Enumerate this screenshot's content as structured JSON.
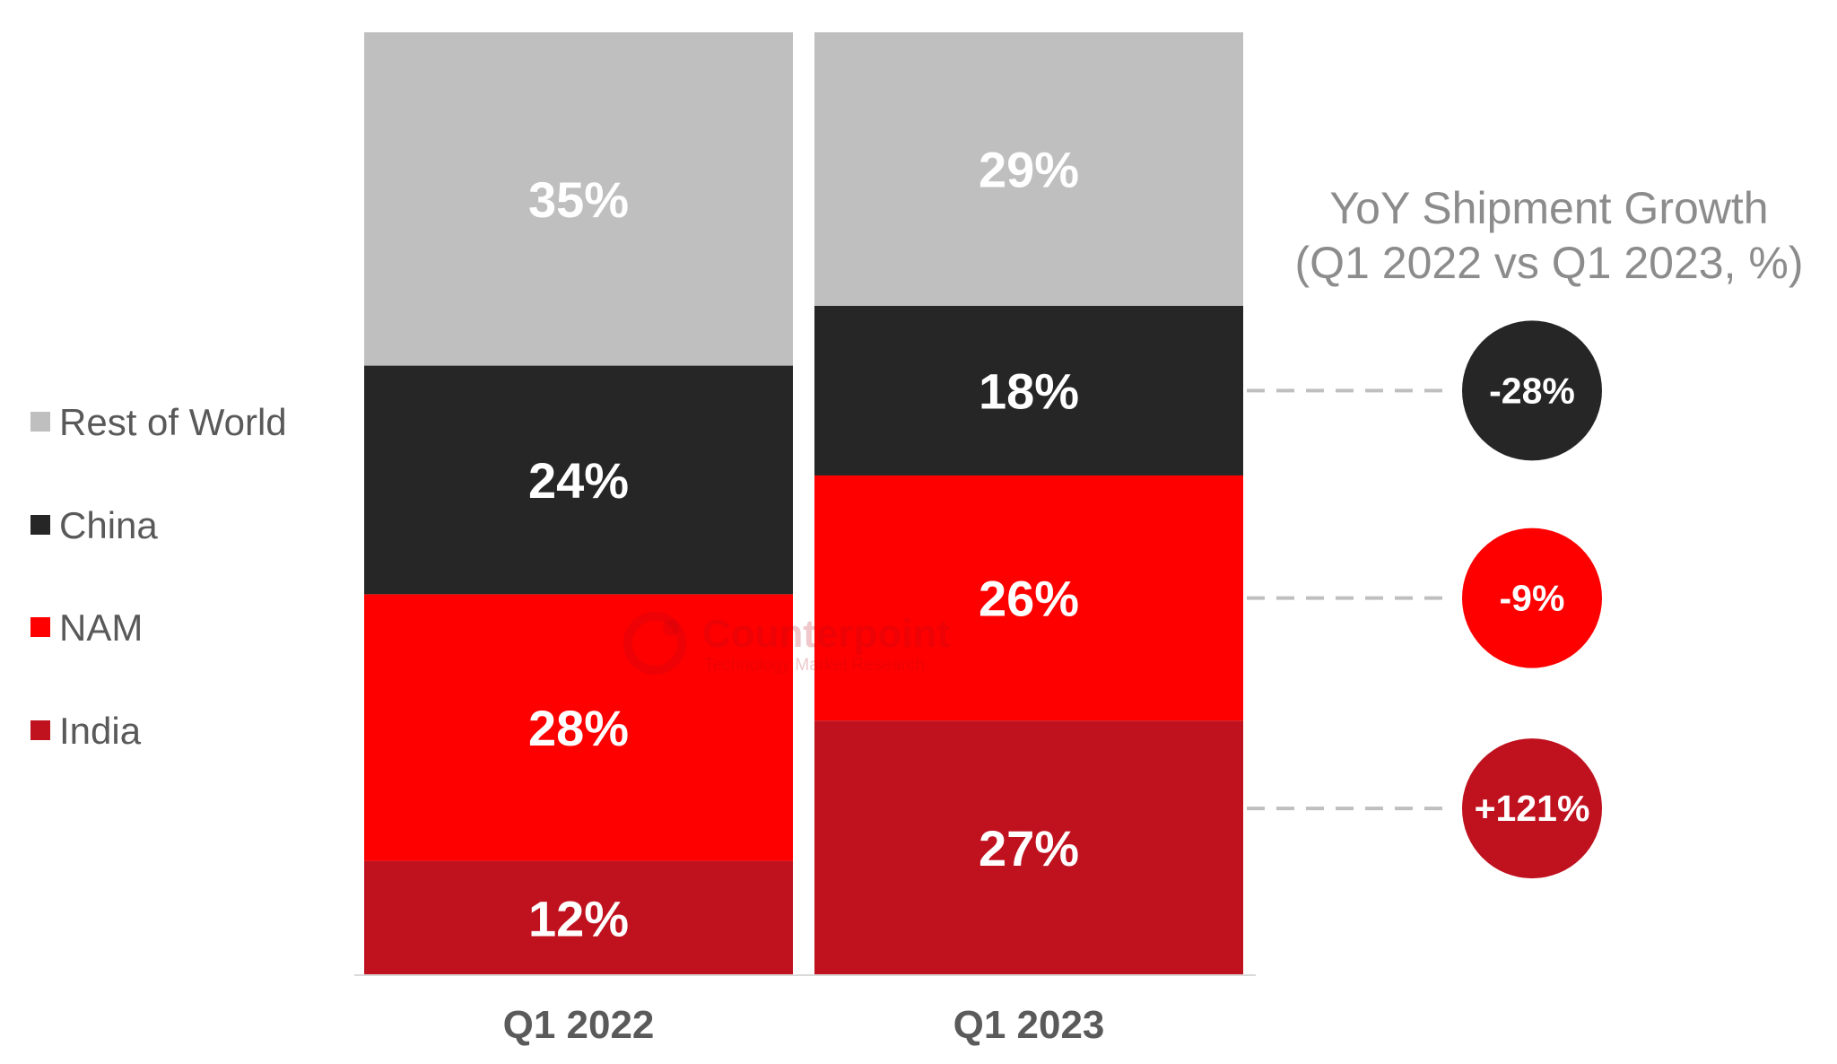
{
  "chart_data": {
    "type": "bar",
    "stacked": true,
    "percent_stacked": true,
    "categories": [
      "Q1 2022",
      "Q1 2023"
    ],
    "series": [
      {
        "name": "India",
        "values": [
          12,
          27
        ],
        "labels": [
          "12%",
          "27%"
        ],
        "color": "#c0111f"
      },
      {
        "name": "NAM",
        "values": [
          28,
          26
        ],
        "labels": [
          "28%",
          "26%"
        ],
        "color": "#fe0000"
      },
      {
        "name": "China",
        "values": [
          24,
          18
        ],
        "labels": [
          "24%",
          "18%"
        ],
        "color": "#262626"
      },
      {
        "name": "Rest of World",
        "values": [
          35,
          29
        ],
        "labels": [
          "35%",
          "29%"
        ],
        "color": "#bfbfbf"
      }
    ],
    "legend": {
      "position": "left",
      "items": [
        "Rest of World",
        "China",
        "NAM",
        "India"
      ]
    },
    "ylim": [
      0,
      100
    ],
    "grid": false,
    "title": "",
    "xlabel": "",
    "ylabel": "",
    "yoy_growth": {
      "title_line1": "YoY Shipment Growth",
      "title_line2": "(Q1 2022 vs Q1 2023, %)",
      "items": [
        {
          "series": "China",
          "label": "-28%",
          "color": "#262626"
        },
        {
          "series": "NAM",
          "label": "-9%",
          "color": "#fe0000"
        },
        {
          "series": "India",
          "label": "+121%",
          "color": "#c0111f"
        }
      ]
    }
  },
  "watermark": {
    "name": "Counterpoint",
    "tagline": "Technology Market Research"
  }
}
